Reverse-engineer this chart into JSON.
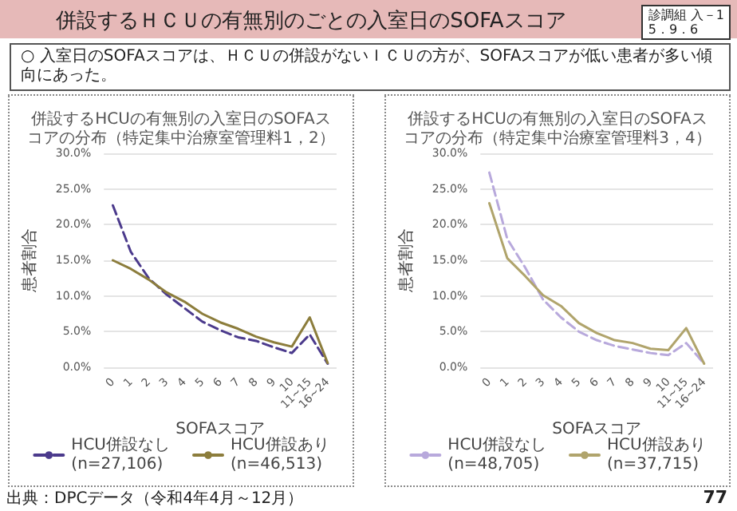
{
  "chart_data": [
    {
      "type": "line",
      "title": "併設するHCUの有無別の入室日のSOFAスコアの分布（特定集中治療室管理料1，2）",
      "xlabel": "SOFAスコア",
      "ylabel": "患者割合",
      "annotations": [
        "併設するＨＣＵの有無別のごとの入室日のSOFAスコア",
        "○ 入室日のSOFAスコアは、ＨＣＵの併設がないＩＣＵの方が、SOFAスコアが低い患者が多い傾向にあった。",
        "診調組 入－1\n5．9．6",
        "出典：DPCデータ（令和4年4月～12月）"
      ],
      "categories": [
        "0",
        "1",
        "2",
        "3",
        "4",
        "5",
        "6",
        "7",
        "8",
        "9",
        "10",
        "11~15",
        "16~24"
      ],
      "series": [
        {
          "name": "HCU併設なし\n(n=27,106)",
          "color": "#4b3a8c",
          "line_style": "dashed",
          "values": [
            22.7,
            16.2,
            12.5,
            10.2,
            8.3,
            6.4,
            5.2,
            4.2,
            3.7,
            2.8,
            2.0,
            4.6,
            0.5
          ]
        },
        {
          "name": "HCU併設あり\n(n=46,513)",
          "color": "#8c7d3c",
          "line_style": "solid",
          "values": [
            15.0,
            13.8,
            12.3,
            10.5,
            9.2,
            7.5,
            6.3,
            5.4,
            4.3,
            3.5,
            2.9,
            7.0,
            0.6
          ]
        }
      ],
      "ylim": [
        0,
        30
      ],
      "yticks": [
        {
          "value": 0,
          "label": "0.0%"
        },
        {
          "value": 5,
          "label": "5.0%"
        },
        {
          "value": 10,
          "label": "10.0%"
        },
        {
          "value": 15,
          "label": "15.0%"
        },
        {
          "value": 20,
          "label": "20.0%"
        },
        {
          "value": 25,
          "label": "25.0%"
        },
        {
          "value": 30,
          "label": "30.0%"
        }
      ],
      "grid": "y",
      "legend": "bottom",
      "marker": "none"
    },
    {
      "type": "line",
      "title": "併設するHCUの有無別の入室日のSOFAスコアの分布（特定集中治療室管理料3，4）",
      "xlabel": "SOFAスコア",
      "ylabel": "患者割合",
      "annotations": [
        "77"
      ],
      "categories": [
        "0",
        "1",
        "2",
        "3",
        "4",
        "5",
        "6",
        "7",
        "8",
        "9",
        "10",
        "11~15",
        "16~24"
      ],
      "series": [
        {
          "name": "HCU併設なし\n(n=48,705)",
          "color": "#b8a9dc",
          "line_style": "dashed",
          "values": [
            27.3,
            18.0,
            14.0,
            9.5,
            7.0,
            5.0,
            3.8,
            3.0,
            2.5,
            2.0,
            1.7,
            3.4,
            0.5
          ]
        },
        {
          "name": "HCU併設あり\n(n=37,715)",
          "color": "#b0a46c",
          "line_style": "solid",
          "values": [
            23.0,
            15.3,
            12.8,
            10.1,
            8.6,
            6.2,
            4.8,
            3.8,
            3.4,
            2.6,
            2.4,
            5.5,
            0.5
          ]
        }
      ],
      "ylim": [
        0,
        30
      ],
      "yticks": [
        {
          "value": 0,
          "label": "0.0%"
        },
        {
          "value": 5,
          "label": "5.0%"
        },
        {
          "value": 10,
          "label": "10.0%"
        },
        {
          "value": 15,
          "label": "15.0%"
        },
        {
          "value": 20,
          "label": "20.0%"
        },
        {
          "value": 25,
          "label": "25.0%"
        },
        {
          "value": 30,
          "label": "30.0%"
        }
      ],
      "grid": "y",
      "legend": "bottom",
      "marker": "none"
    }
  ]
}
